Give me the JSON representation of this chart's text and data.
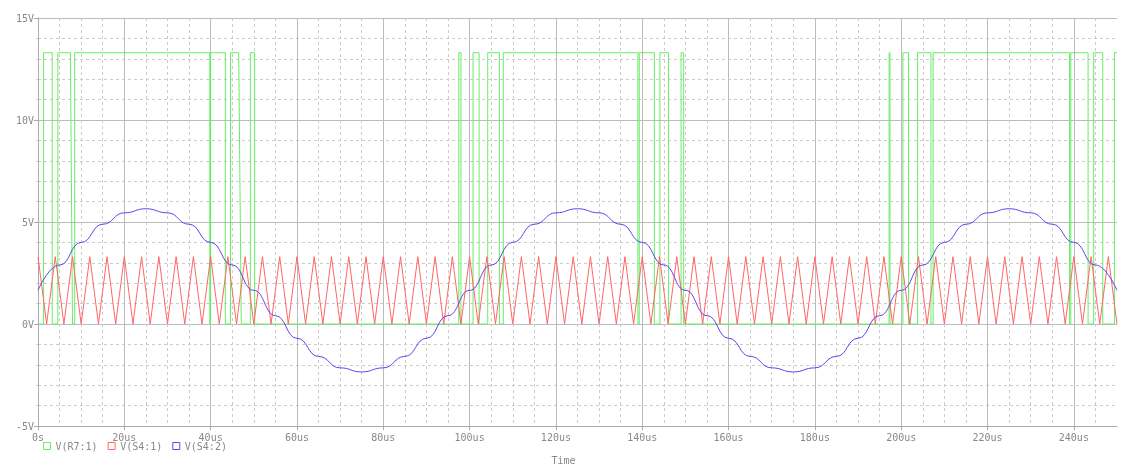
{
  "chart_data": {
    "type": "line",
    "xlabel": "Time",
    "legend": "bottom left",
    "grid": true,
    "xlim": [
      0,
      250
    ],
    "xticks": [
      {
        "value": 0,
        "label": "0s"
      },
      {
        "value": 5,
        "label": null
      },
      {
        "value": 10,
        "label": null
      },
      {
        "value": 15,
        "label": null
      },
      {
        "value": 20,
        "label": "20us"
      },
      {
        "value": 25,
        "label": null
      },
      {
        "value": 30,
        "label": null
      },
      {
        "value": 35,
        "label": null
      },
      {
        "value": 40,
        "label": "40us"
      },
      {
        "value": 45,
        "label": null
      },
      {
        "value": 50,
        "label": null
      },
      {
        "value": 55,
        "label": null
      },
      {
        "value": 60,
        "label": "60us"
      },
      {
        "value": 65,
        "label": null
      },
      {
        "value": 70,
        "label": null
      },
      {
        "value": 75,
        "label": null
      },
      {
        "value": 80,
        "label": "80us"
      },
      {
        "value": 85,
        "label": null
      },
      {
        "value": 90,
        "label": null
      },
      {
        "value": 95,
        "label": null
      },
      {
        "value": 100,
        "label": "100us"
      },
      {
        "value": 105,
        "label": null
      },
      {
        "value": 110,
        "label": null
      },
      {
        "value": 115,
        "label": null
      },
      {
        "value": 120,
        "label": "120us"
      },
      {
        "value": 125,
        "label": null
      },
      {
        "value": 130,
        "label": null
      },
      {
        "value": 135,
        "label": null
      },
      {
        "value": 140,
        "label": "140us"
      },
      {
        "value": 145,
        "label": null
      },
      {
        "value": 150,
        "label": null
      },
      {
        "value": 155,
        "label": null
      },
      {
        "value": 160,
        "label": "160us"
      },
      {
        "value": 165,
        "label": null
      },
      {
        "value": 170,
        "label": null
      },
      {
        "value": 175,
        "label": null
      },
      {
        "value": 180,
        "label": "180us"
      },
      {
        "value": 185,
        "label": null
      },
      {
        "value": 190,
        "label": null
      },
      {
        "value": 195,
        "label": null
      },
      {
        "value": 200,
        "label": "200us"
      },
      {
        "value": 205,
        "label": null
      },
      {
        "value": 210,
        "label": null
      },
      {
        "value": 215,
        "label": null
      },
      {
        "value": 220,
        "label": "220us"
      },
      {
        "value": 225,
        "label": null
      },
      {
        "value": 230,
        "label": null
      },
      {
        "value": 235,
        "label": null
      },
      {
        "value": 240,
        "label": "240us"
      },
      {
        "value": 245,
        "label": null
      }
    ],
    "ylim": [
      -5,
      15
    ],
    "yticks": [
      {
        "value": -5,
        "label": "-5V"
      },
      {
        "value": -4,
        "label": null
      },
      {
        "value": -3,
        "label": null
      },
      {
        "value": -2,
        "label": null
      },
      {
        "value": -1,
        "label": null
      },
      {
        "value": 0,
        "label": "0V"
      },
      {
        "value": 1,
        "label": null
      },
      {
        "value": 2,
        "label": null
      },
      {
        "value": 3,
        "label": null
      },
      {
        "value": 4,
        "label": null
      },
      {
        "value": 5,
        "label": "5V"
      },
      {
        "value": 6,
        "label": null
      },
      {
        "value": 7,
        "label": null
      },
      {
        "value": 8,
        "label": null
      },
      {
        "value": 9,
        "label": null
      },
      {
        "value": 10,
        "label": "10V"
      },
      {
        "value": 11,
        "label": null
      },
      {
        "value": 12,
        "label": null
      },
      {
        "value": 13,
        "label": null
      },
      {
        "value": 14,
        "label": null
      },
      {
        "value": 15,
        "label": "15V"
      }
    ],
    "series": [
      {
        "name": "V(R7:1)",
        "color": "#66ee66",
        "x": [
          0,
          1.3,
          1.3,
          3.3,
          3.3,
          4.6,
          4.6,
          7.5,
          8.0,
          8.5,
          8.5,
          39.8,
          39.8,
          40.0,
          40.0,
          43.4,
          43.4,
          44.6,
          44.6,
          46.5,
          47.1,
          49.2,
          49.2,
          50.2,
          50.2,
          97.5,
          97.5,
          98.0,
          98.0,
          100.8,
          100.8,
          102.2,
          102.2,
          104.2,
          104.2,
          106.9,
          106.9,
          107.8,
          107.8,
          139.0,
          139.0,
          139.3,
          139.3,
          142.8,
          142.8,
          144.1,
          144.1,
          146.1,
          146.1,
          149.0,
          149.0,
          149.6,
          149.6,
          197.2,
          197.2,
          197.4,
          197.4,
          200.4,
          200.4,
          201.7,
          201.7,
          203.8,
          203.8,
          206.9,
          206.9,
          207.4,
          207.4,
          239.0,
          239.0,
          239.3,
          239.3,
          243.3,
          243.3,
          244.6,
          244.6,
          246.7,
          246.7,
          249.4,
          249.4,
          250
        ],
        "values": [
          0,
          0,
          13.3,
          13.3,
          0,
          0,
          13.3,
          13.3,
          0,
          0,
          13.3,
          13.3,
          0,
          0,
          13.3,
          13.3,
          0,
          0,
          13.3,
          13.3,
          0,
          0,
          13.3,
          13.3,
          0,
          0,
          13.3,
          13.3,
          0,
          0,
          13.3,
          13.3,
          0,
          0,
          13.3,
          13.3,
          0,
          0,
          13.3,
          13.3,
          0,
          0,
          13.3,
          13.3,
          0,
          0,
          13.3,
          13.3,
          0,
          0,
          13.3,
          13.3,
          0,
          0,
          13.3,
          13.3,
          0,
          0,
          13.3,
          13.3,
          0,
          0,
          13.3,
          13.3,
          0,
          0,
          13.3,
          13.3,
          0,
          0,
          13.3,
          13.3,
          0,
          0,
          13.3,
          13.3,
          0,
          0,
          13.3,
          13.3
        ]
      },
      {
        "name": "V(S4:1)",
        "color": "#ff6666",
        "x": [
          0,
          2,
          4,
          6,
          8,
          10,
          12,
          14,
          16,
          18,
          20,
          22,
          24,
          26,
          28,
          30,
          32,
          34,
          36,
          38,
          40,
          42,
          44,
          46,
          48,
          50,
          52,
          54,
          56,
          58,
          60,
          62,
          64,
          66,
          68,
          70,
          72,
          74,
          76,
          78,
          80,
          82,
          84,
          86,
          88,
          90,
          92,
          94,
          96,
          98,
          100,
          102,
          104,
          106,
          108,
          110,
          112,
          114,
          116,
          118,
          120,
          122,
          124,
          126,
          128,
          130,
          132,
          134,
          136,
          138,
          140,
          142,
          144,
          146,
          148,
          150,
          152,
          154,
          156,
          158,
          160,
          162,
          164,
          166,
          168,
          170,
          172,
          174,
          176,
          178,
          180,
          182,
          184,
          186,
          188,
          190,
          192,
          194,
          196,
          198,
          200,
          202,
          204,
          206,
          208,
          210,
          212,
          214,
          216,
          218,
          220,
          222,
          224,
          226,
          228,
          230,
          232,
          234,
          236,
          238,
          240,
          242,
          244,
          246,
          248,
          250
        ],
        "values": [
          3.3,
          0,
          3.3,
          0,
          3.3,
          0,
          3.3,
          0,
          3.3,
          0,
          3.3,
          0,
          3.3,
          0,
          3.3,
          0,
          3.3,
          0,
          3.3,
          0,
          3.3,
          0,
          3.3,
          0,
          3.3,
          0,
          3.3,
          0,
          3.3,
          0,
          3.3,
          0,
          3.3,
          0,
          3.3,
          0,
          3.3,
          0,
          3.3,
          0,
          3.3,
          0,
          3.3,
          0,
          3.3,
          0,
          3.3,
          0,
          3.3,
          0,
          3.3,
          0,
          3.3,
          0,
          3.3,
          0,
          3.3,
          0,
          3.3,
          0,
          3.3,
          0,
          3.3,
          0,
          3.3,
          0,
          3.3,
          0,
          3.3,
          0,
          3.3,
          0,
          3.3,
          0,
          3.3,
          0,
          3.3,
          0,
          3.3,
          0,
          3.3,
          0,
          3.3,
          0,
          3.3,
          0,
          3.3,
          0,
          3.3,
          0,
          3.3,
          0,
          3.3,
          0,
          3.3,
          0,
          3.3,
          0,
          3.3,
          0,
          3.3,
          0,
          3.3,
          0,
          3.3,
          0,
          3.3,
          0,
          3.3,
          0,
          3.3,
          0,
          3.3,
          0,
          3.3,
          0,
          3.3,
          0,
          3.3,
          0,
          3.3,
          0,
          3.3,
          0,
          3.3,
          0
        ]
      },
      {
        "name": "V(S4:2)",
        "color": "#6a3df0",
        "x": [
          0,
          5,
          10,
          15,
          20,
          25,
          30,
          35,
          40,
          45,
          50,
          55,
          60,
          65,
          70,
          75,
          80,
          85,
          90,
          95,
          100,
          105,
          110,
          115,
          120,
          125,
          130,
          135,
          140,
          145,
          150,
          155,
          160,
          165,
          170,
          175,
          180,
          185,
          190,
          195,
          200,
          205,
          210,
          215,
          220,
          225,
          230,
          235,
          240,
          245,
          250
        ],
        "values": [
          1.65,
          2.89,
          4.0,
          4.89,
          5.45,
          5.65,
          5.45,
          4.89,
          4.0,
          2.89,
          1.65,
          0.41,
          -0.7,
          -1.59,
          -2.15,
          -2.35,
          -2.15,
          -1.59,
          -0.7,
          0.41,
          1.65,
          2.89,
          4.0,
          4.89,
          5.45,
          5.65,
          5.45,
          4.89,
          4.0,
          2.89,
          1.65,
          0.41,
          -0.7,
          -1.59,
          -2.15,
          -2.35,
          -2.15,
          -1.59,
          -0.7,
          0.41,
          1.65,
          2.89,
          4.0,
          4.89,
          5.45,
          5.65,
          5.45,
          4.89,
          4.0,
          2.89,
          1.65
        ]
      }
    ]
  }
}
